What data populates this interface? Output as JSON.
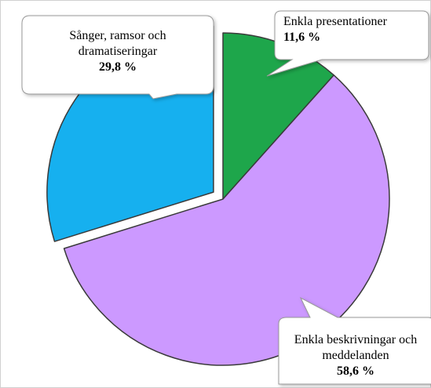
{
  "chart_data": {
    "type": "pie",
    "categories": [
      "Enkla presentationer",
      "Enkla beskrivningar och meddelanden",
      "Sånger, ramsor och dramatiseringar"
    ],
    "values": [
      11.6,
      58.6,
      29.8
    ],
    "value_labels": [
      "11,6 %",
      "58,6 %",
      "29,8 %"
    ],
    "colors": [
      "#1ea64b",
      "#cc99ff",
      "#16b0ef"
    ],
    "explode": [
      false,
      false,
      true
    ]
  }
}
